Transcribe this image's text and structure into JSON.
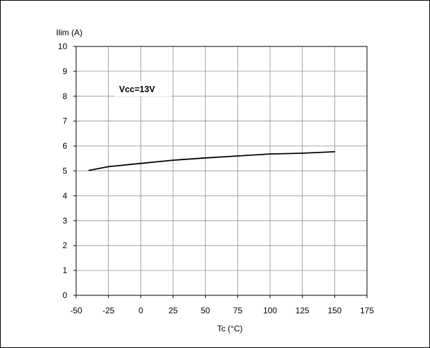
{
  "chart_data": {
    "type": "line",
    "title": "",
    "annotation": "Vcc=13V",
    "xlabel": "Tc (°C)",
    "ylabel": "Ilim (A)",
    "xlim": [
      -50,
      175
    ],
    "ylim": [
      0,
      10
    ],
    "x_ticks": [
      -50,
      -25,
      0,
      25,
      50,
      75,
      100,
      125,
      150,
      175
    ],
    "x_tick_labels": [
      "-50",
      "-25",
      "0",
      "25",
      "50",
      "75",
      "100",
      "125",
      "150",
      "175"
    ],
    "y_ticks": [
      0,
      1,
      2,
      3,
      4,
      5,
      6,
      7,
      8,
      9,
      10
    ],
    "y_tick_labels": [
      "0",
      "1",
      "2",
      "3",
      "4",
      "5",
      "6",
      "7",
      "8",
      "9",
      "10"
    ],
    "grid": true,
    "series": [
      {
        "x": [
          -40,
          -25,
          0,
          25,
          50,
          75,
          100,
          125,
          150
        ],
        "y": [
          5.02,
          5.17,
          5.3,
          5.43,
          5.52,
          5.6,
          5.68,
          5.71,
          5.77
        ]
      }
    ]
  }
}
